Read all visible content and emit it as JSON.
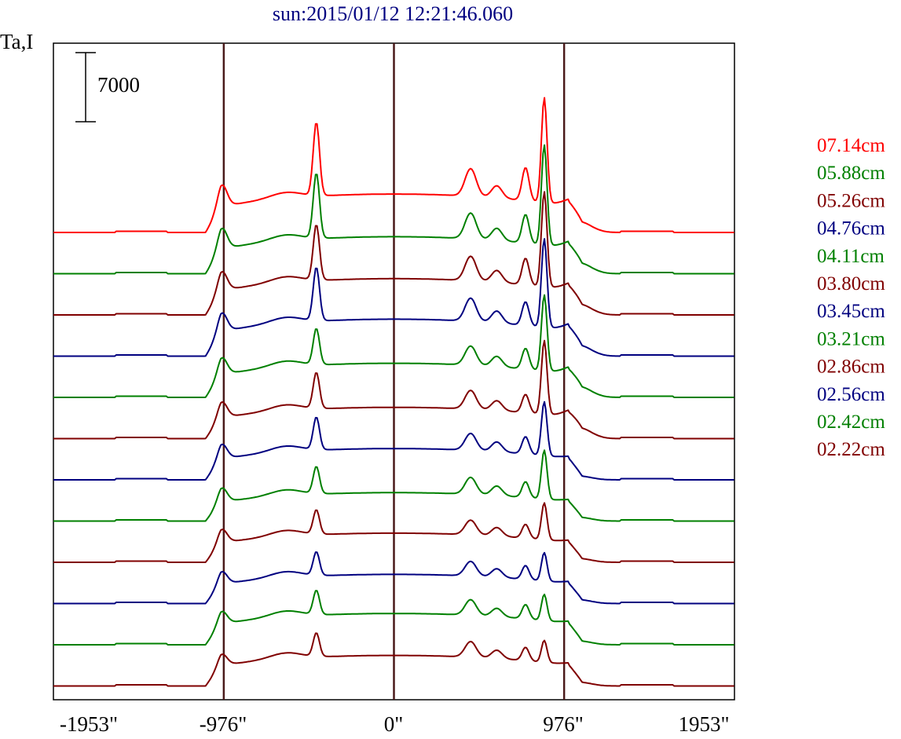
{
  "chart_data": {
    "type": "line",
    "title": "sun:2015/01/12 12:21:46.060",
    "ylabel": "Ta,I",
    "scale_bar_label": "7000",
    "x_ticks": [
      "-1953\"",
      "-976\"",
      "0\"",
      "976\"",
      "1953\""
    ],
    "xlim": [
      -1953,
      1953
    ],
    "vertical_lines": [
      -976,
      0,
      976
    ],
    "grid": false,
    "legend_position": "right",
    "frame_color": "#000000",
    "colors": {
      "red": "#ff0000",
      "green": "#008000",
      "maroon": "#800000",
      "navy": "#000080",
      "rule": "#4a1a1a"
    },
    "series": [
      {
        "name": "07.14cm",
        "color": "#ff0000",
        "baseline": 0,
        "peaks": {
          "limb_left": 3900,
          "p_left": 10600,
          "c_center": 5400,
          "p1": 6200,
          "p2": 4100,
          "p3": 6700,
          "p4": 14800
        }
      },
      {
        "name": "05.88cm",
        "color": "#008000",
        "baseline": 0,
        "peaks": {
          "limb_left": 3700,
          "p_left": 9400,
          "c_center": 5200,
          "p1": 5800,
          "p2": 4100,
          "p3": 5800,
          "p4": 14100
        }
      },
      {
        "name": "05.26cm",
        "color": "#800000",
        "baseline": 0,
        "peaks": {
          "limb_left": 3400,
          "p_left": 8000,
          "c_center": 5100,
          "p1": 5500,
          "p2": 4000,
          "p3": 5400,
          "p4": 13400
        }
      },
      {
        "name": "04.76cm",
        "color": "#000080",
        "baseline": 0,
        "peaks": {
          "limb_left": 3300,
          "p_left": 7700,
          "c_center": 5200,
          "p1": 5200,
          "p2": 4000,
          "p3": 4800,
          "p4": 12500
        }
      },
      {
        "name": "04.11cm",
        "color": "#008000",
        "baseline": 0,
        "peaks": {
          "limb_left": 3000,
          "p_left": 5200,
          "c_center": 4800,
          "p1": 4300,
          "p2": 3500,
          "p3": 4200,
          "p4": 10700
        }
      },
      {
        "name": "03.80cm",
        "color": "#800000",
        "baseline": 0,
        "peaks": {
          "limb_left": 2800,
          "p_left": 5200,
          "c_center": 4400,
          "p1": 4200,
          "p2": 3300,
          "p3": 3700,
          "p4": 10400
        }
      },
      {
        "name": "03.45cm",
        "color": "#000080",
        "baseline": 0,
        "peaks": {
          "limb_left": 2600,
          "p_left": 4700,
          "c_center": 4400,
          "p1": 3800,
          "p2": 3300,
          "p3": 3500,
          "p4": 7600
        }
      },
      {
        "name": "03.21cm",
        "color": "#008000",
        "baseline": 0,
        "peaks": {
          "limb_left": 2500,
          "p_left": 3900,
          "c_center": 4000,
          "p1": 3800,
          "p2": 3200,
          "p3": 3200,
          "p4": 6900
        }
      },
      {
        "name": "02.86cm",
        "color": "#800000",
        "baseline": 0,
        "peaks": {
          "limb_left": 2400,
          "p_left": 3500,
          "c_center": 4100,
          "p1": 3300,
          "p2": 2900,
          "p3": 2800,
          "p4": 5200
        }
      },
      {
        "name": "02.56cm",
        "color": "#000080",
        "baseline": 0,
        "peaks": {
          "limb_left": 2200,
          "p_left": 3400,
          "c_center": 4100,
          "p1": 3300,
          "p2": 2900,
          "p3": 2800,
          "p4": 4000
        }
      },
      {
        "name": "02.42cm",
        "color": "#008000",
        "baseline": 0,
        "peaks": {
          "limb_left": 2200,
          "p_left": 3500,
          "c_center": 4400,
          "p1": 3500,
          "p2": 2800,
          "p3": 2900,
          "p4": 3700
        }
      },
      {
        "name": "02.22cm",
        "color": "#800000",
        "baseline": 0,
        "peaks": {
          "limb_left": 2000,
          "p_left": 3400,
          "c_center": 4300,
          "p1": 3500,
          "p2": 2800,
          "p3": 2700,
          "p4": 3100
        }
      }
    ]
  }
}
